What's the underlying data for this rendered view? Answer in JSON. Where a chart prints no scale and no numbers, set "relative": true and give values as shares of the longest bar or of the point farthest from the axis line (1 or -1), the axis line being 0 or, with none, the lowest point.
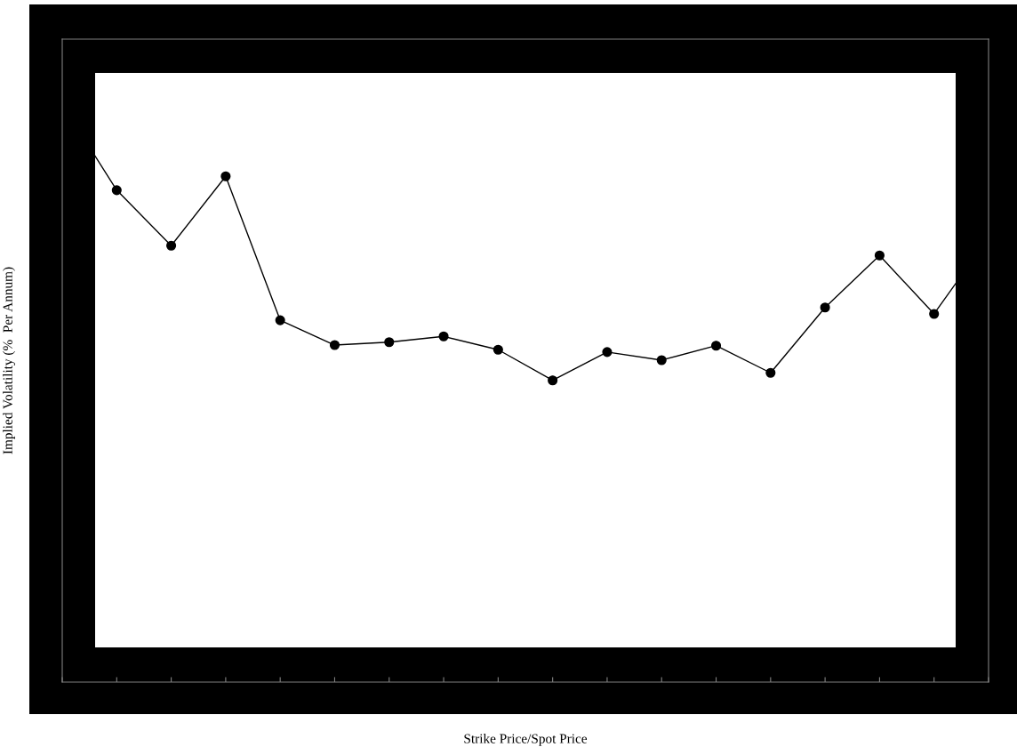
{
  "chart_data": {
    "type": "line",
    "xlabel": "Strike Price/Spot Price",
    "ylabel": "Implied Volatility (%  Per Annum)",
    "relative": true,
    "categories": [
      null,
      null,
      null,
      null,
      null,
      null,
      null,
      null,
      null,
      null,
      null,
      null,
      null,
      null,
      null,
      null,
      null,
      null
    ],
    "series": [
      {
        "color": "#000000",
        "values": [
          1,
          0.851,
          0.755,
          0.875,
          0.626,
          0.583,
          0.588,
          0.598,
          0.575,
          0.522,
          0.571,
          0.557,
          0.582,
          0.535,
          0.648,
          0.738,
          0.637,
          0.769
        ]
      }
    ],
    "marker": "circle",
    "line_style": "solid",
    "grid": false,
    "legend": false
  }
}
